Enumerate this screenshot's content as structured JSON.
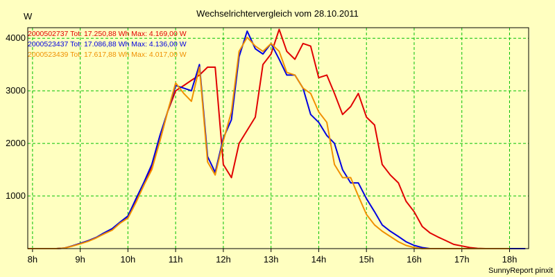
{
  "chart_data": {
    "type": "line",
    "title": "Wechselrichtervergleich vom 28.10.2011",
    "ylabel": "W",
    "xlabel": "",
    "footer": "SunnyReport pinxit",
    "xlim": [
      7.9,
      18.4
    ],
    "ylim": [
      0,
      4200
    ],
    "grid": true,
    "legend_position": "top-left",
    "x_ticks": [
      {
        "value": 8,
        "label": "8h"
      },
      {
        "value": 9,
        "label": "9h"
      },
      {
        "value": 10,
        "label": "10h"
      },
      {
        "value": 11,
        "label": "11h"
      },
      {
        "value": 12,
        "label": "12h"
      },
      {
        "value": 13,
        "label": "13h"
      },
      {
        "value": 14,
        "label": "14h"
      },
      {
        "value": 15,
        "label": "15h"
      },
      {
        "value": 16,
        "label": "16h"
      },
      {
        "value": 17,
        "label": "17h"
      },
      {
        "value": 18,
        "label": "18h"
      }
    ],
    "y_ticks": [
      {
        "value": 1000,
        "label": "1000"
      },
      {
        "value": 2000,
        "label": "2000"
      },
      {
        "value": 3000,
        "label": "3000"
      },
      {
        "value": 4000,
        "label": "4000"
      }
    ],
    "series": [
      {
        "name": "2000502737 Tot: 17.250,88 Wh Max: 4.169,00 W",
        "color": "#e00000",
        "x": [
          7.9,
          8.5,
          8.67,
          8.83,
          9.0,
          9.17,
          9.33,
          9.5,
          9.67,
          9.83,
          10.0,
          10.17,
          10.33,
          10.5,
          10.67,
          10.83,
          11.0,
          11.17,
          11.33,
          11.5,
          11.67,
          11.83,
          12.0,
          12.17,
          12.33,
          12.5,
          12.67,
          12.83,
          13.0,
          13.17,
          13.33,
          13.5,
          13.67,
          13.83,
          14.0,
          14.17,
          14.33,
          14.5,
          14.67,
          14.83,
          15.0,
          15.17,
          15.33,
          15.5,
          15.67,
          15.83,
          16.0,
          16.17,
          16.33,
          16.5,
          16.67,
          16.83,
          17.0,
          17.17,
          17.33,
          17.5,
          17.67,
          17.83,
          18.0
        ],
        "values": [
          0,
          0,
          10,
          50,
          100,
          150,
          210,
          280,
          360,
          480,
          600,
          900,
          1200,
          1550,
          2050,
          2600,
          3000,
          3100,
          3200,
          3300,
          3450,
          3450,
          1600,
          1350,
          2000,
          2250,
          2500,
          3500,
          3700,
          4169,
          3750,
          3600,
          3900,
          3850,
          3250,
          3300,
          2950,
          2550,
          2700,
          2950,
          2500,
          2350,
          1600,
          1400,
          1250,
          900,
          700,
          420,
          300,
          220,
          150,
          80,
          50,
          20,
          5,
          0,
          0,
          0,
          0
        ]
      },
      {
        "name": "2000523437 Tot: 17.086,88 Wh Max: 4.136,00 W",
        "color": "#0000e0",
        "x": [
          7.9,
          8.5,
          8.67,
          8.83,
          9.0,
          9.17,
          9.33,
          9.5,
          9.67,
          9.83,
          10.0,
          10.17,
          10.33,
          10.5,
          10.67,
          10.83,
          11.0,
          11.17,
          11.33,
          11.5,
          11.67,
          11.83,
          12.0,
          12.17,
          12.33,
          12.5,
          12.67,
          12.83,
          13.0,
          13.17,
          13.33,
          13.5,
          13.67,
          13.83,
          14.0,
          14.17,
          14.33,
          14.5,
          14.67,
          14.83,
          15.0,
          15.17,
          15.33,
          15.5,
          15.67,
          15.83,
          16.0,
          16.17,
          16.33,
          16.5,
          16.67,
          16.83,
          17.0,
          17.17,
          17.33,
          17.5,
          17.67,
          17.83,
          18.0,
          18.33
        ],
        "values": [
          0,
          0,
          10,
          50,
          100,
          150,
          210,
          300,
          380,
          500,
          620,
          950,
          1250,
          1600,
          2150,
          2600,
          3100,
          3050,
          3000,
          3500,
          1750,
          1450,
          2100,
          2450,
          3650,
          4136,
          3800,
          3700,
          3900,
          3600,
          3300,
          3300,
          3050,
          2550,
          2400,
          2150,
          2000,
          1500,
          1250,
          1250,
          950,
          700,
          450,
          330,
          230,
          130,
          60,
          20,
          0,
          0,
          0,
          0,
          0,
          0,
          0,
          0,
          0,
          0,
          0,
          0
        ]
      },
      {
        "name": "2000523439 Tot: 17.617,88 Wh Max: 4.017,00 W",
        "color": "#f09000",
        "x": [
          7.9,
          8.5,
          8.67,
          8.83,
          9.0,
          9.17,
          9.33,
          9.5,
          9.67,
          9.83,
          10.0,
          10.17,
          10.33,
          10.5,
          10.67,
          10.83,
          11.0,
          11.17,
          11.33,
          11.5,
          11.67,
          11.83,
          12.0,
          12.17,
          12.33,
          12.5,
          12.67,
          12.83,
          13.0,
          13.17,
          13.33,
          13.5,
          13.67,
          13.83,
          14.0,
          14.17,
          14.33,
          14.5,
          14.67,
          14.83,
          15.0,
          15.17,
          15.33,
          15.5,
          15.67,
          15.83,
          16.0,
          16.17,
          16.33,
          16.5,
          16.67,
          16.83,
          17.0,
          17.17,
          17.33,
          17.5,
          17.67,
          17.83,
          18.0
        ],
        "values": [
          0,
          0,
          10,
          45,
          90,
          140,
          200,
          280,
          350,
          480,
          580,
          880,
          1200,
          1500,
          2050,
          2600,
          3150,
          2950,
          2800,
          3450,
          1650,
          1400,
          2050,
          2600,
          3750,
          4017,
          3850,
          3750,
          3900,
          3750,
          3350,
          3300,
          3050,
          2950,
          2600,
          2400,
          1600,
          1350,
          1350,
          1000,
          650,
          450,
          330,
          230,
          130,
          60,
          20,
          0,
          0,
          0,
          0,
          0,
          0,
          0,
          0,
          0,
          0,
          0,
          0
        ]
      }
    ]
  }
}
